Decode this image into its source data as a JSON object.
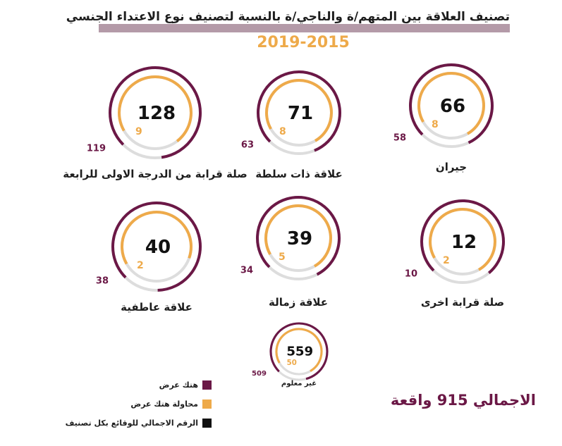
{
  "title": "تصنيف العلاقة بين المتهم/ة والناجي/ة بالنسبة لتصنيف نوع الاعتداء الجنسي",
  "years": "2019-2015",
  "colors": {
    "assault": "#6b1846",
    "attempt": "#eeaa4a",
    "total": "#111111",
    "track": "#dddddd"
  },
  "chart_data": {
    "type": "donut",
    "title": "تصنيف العلاقة بين المتهم/ة والناجي/ة بالنسبة لتصنيف نوع الاعتداء الجنسي",
    "subtitle": "2019-2015",
    "series_names": [
      "هتك عرض",
      "محاولة هتك عرض"
    ],
    "categories": [
      {
        "label": "جيران",
        "total": "66",
        "assault": "58",
        "attempt": "8"
      },
      {
        "label": "علاقة ذات سلطة",
        "total": "71",
        "assault": "63",
        "attempt": "8"
      },
      {
        "label": "صلة قرابة من الدرجة الاولى للرابعة",
        "total": "128",
        "assault": "119",
        "attempt": "9"
      },
      {
        "label": "صلة قرابة اخرى",
        "total": "12",
        "assault": "10",
        "attempt": "2"
      },
      {
        "label": "علاقة زمالة",
        "total": "39",
        "assault": "34",
        "attempt": "5"
      },
      {
        "label": "علاقة عاطفية",
        "total": "40",
        "assault": "38",
        "attempt": "2"
      },
      {
        "label": "غير معلوم",
        "total": "559",
        "assault": "509",
        "attempt": "50"
      }
    ],
    "grand_total": "الاجمالي 915 واقعة"
  },
  "legend": [
    {
      "label": "هتك عرض",
      "color": "#6b1846"
    },
    {
      "label": "محاولة هتك عرض",
      "color": "#eeaa4a"
    },
    {
      "label": "الرقم الاجمالي للوقائع بكل تصنيف",
      "color": "#111111"
    }
  ]
}
